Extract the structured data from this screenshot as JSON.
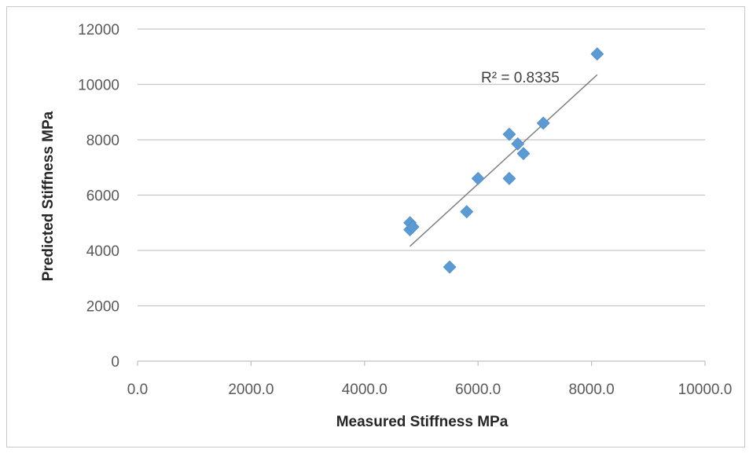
{
  "chart_data": {
    "type": "scatter",
    "xlabel": "Measured Stiffness MPa",
    "ylabel": "Predicted Stiffness MPa",
    "xlim": [
      0,
      10000
    ],
    "ylim": [
      0,
      12000
    ],
    "x_ticks": [
      "0.0",
      "2000.0",
      "4000.0",
      "6000.0",
      "8000.0",
      "10000.0"
    ],
    "y_ticks": [
      "0",
      "2000",
      "4000",
      "6000",
      "8000",
      "10000",
      "12000"
    ],
    "grid": "horizontal",
    "marker_color": "#5b9bd5",
    "trendline_color": "#7f7f7f",
    "series": [
      {
        "points": [
          {
            "x": 4800,
            "y": 5000
          },
          {
            "x": 4800,
            "y": 4750
          },
          {
            "x": 4850,
            "y": 4850
          },
          {
            "x": 5500,
            "y": 3400
          },
          {
            "x": 5800,
            "y": 5400
          },
          {
            "x": 6000,
            "y": 6600
          },
          {
            "x": 6550,
            "y": 6600
          },
          {
            "x": 6550,
            "y": 8200
          },
          {
            "x": 6700,
            "y": 7850
          },
          {
            "x": 6800,
            "y": 7500
          },
          {
            "x": 7150,
            "y": 8600
          },
          {
            "x": 8100,
            "y": 11100
          }
        ]
      }
    ],
    "trendline": {
      "x": [
        4800,
        8100
      ],
      "y": [
        4150,
        10350
      ]
    },
    "annotation": "R² = 0.8335"
  }
}
